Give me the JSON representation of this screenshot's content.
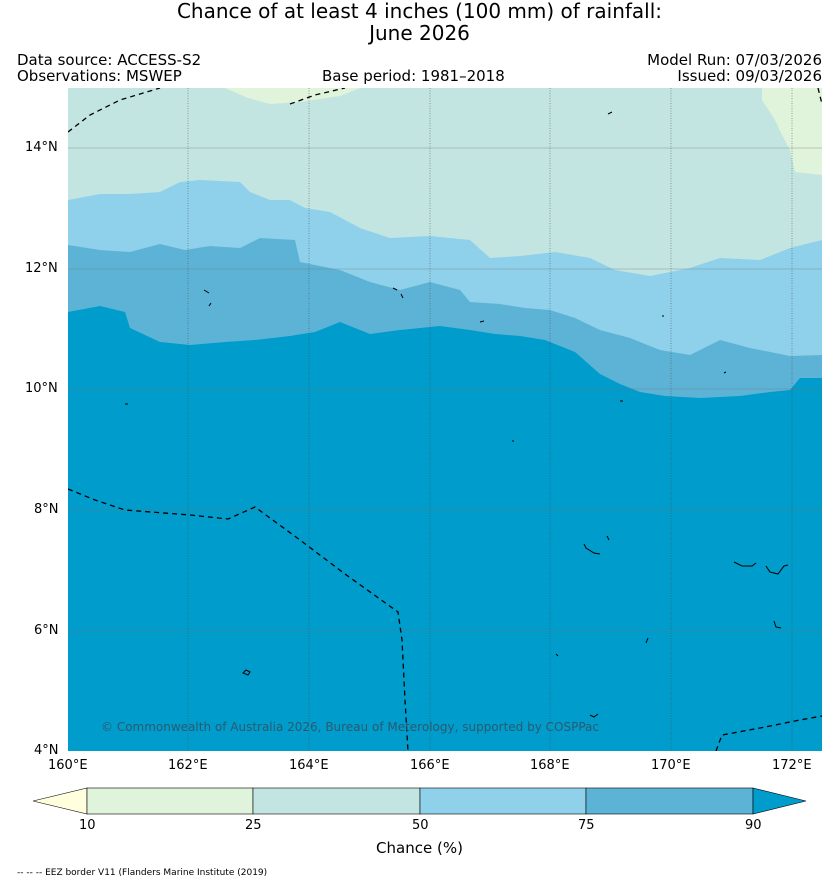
{
  "title": {
    "line1": "Chance of at least 4 inches (100  mm) of rainfall:",
    "line2": "June 2026"
  },
  "header": {
    "data_source": "Data source: ACCESS-S2",
    "observations": "Observations: MSWEP",
    "base_period": "Base period: 1981–2018",
    "model_run": "Model Run: 07/03/2026",
    "issued": "Issued: 09/03/2026"
  },
  "map": {
    "lat_labels": [
      "14°N",
      "12°N",
      "10°N",
      "8°N",
      "6°N",
      "4°N"
    ],
    "lon_labels": [
      "160°E",
      "162°E",
      "164°E",
      "166°E",
      "168°E",
      "170°E",
      "172°E"
    ],
    "copyright": "© Commonwealth of Australia 2026, Bureau of Meterology, supported by COSPPac"
  },
  "colorbar": {
    "ticks": [
      "10",
      "25",
      "50",
      "75",
      "90"
    ],
    "label": "Chance (%)",
    "colors": [
      "#ffffdd",
      "#e0f3db",
      "#c2e5e2",
      "#8fd1ea",
      "#5db3d6",
      "#009ccb"
    ]
  },
  "footer": {
    "eez_note": "-- -- -- EEZ border V11 (Flanders Marine Institute (2019)"
  }
}
